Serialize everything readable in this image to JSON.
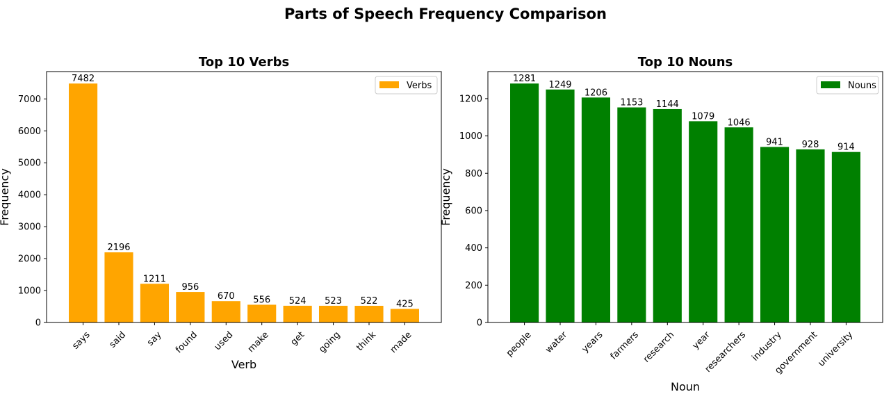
{
  "figure": {
    "suptitle": "Parts of Speech Frequency Comparison"
  },
  "chart_data": [
    {
      "type": "bar",
      "title": "Top 10 Verbs",
      "xlabel": "Verb",
      "ylabel": "Frequency",
      "categories": [
        "says",
        "said",
        "say",
        "found",
        "used",
        "make",
        "get",
        "going",
        "think",
        "made"
      ],
      "series": [
        {
          "name": "Verbs",
          "color": "#ffa500",
          "values": [
            7482,
            2196,
            1211,
            956,
            670,
            556,
            524,
            523,
            522,
            425
          ]
        }
      ],
      "ylim": [
        0,
        7856
      ],
      "yticks": [
        0,
        1000,
        2000,
        3000,
        4000,
        5000,
        6000,
        7000
      ],
      "legend": "top-right",
      "grid": false
    },
    {
      "type": "bar",
      "title": "Top 10 Nouns",
      "xlabel": "Noun",
      "ylabel": "Frequency",
      "categories": [
        "people",
        "water",
        "years",
        "farmers",
        "research",
        "year",
        "researchers",
        "industry",
        "government",
        "university"
      ],
      "series": [
        {
          "name": "Nouns",
          "color": "#008000",
          "values": [
            1281,
            1249,
            1206,
            1153,
            1144,
            1079,
            1046,
            941,
            928,
            914
          ]
        }
      ],
      "ylim": [
        0,
        1345
      ],
      "yticks": [
        0,
        200,
        400,
        600,
        800,
        1000,
        1200
      ],
      "legend": "top-right",
      "grid": false
    }
  ]
}
